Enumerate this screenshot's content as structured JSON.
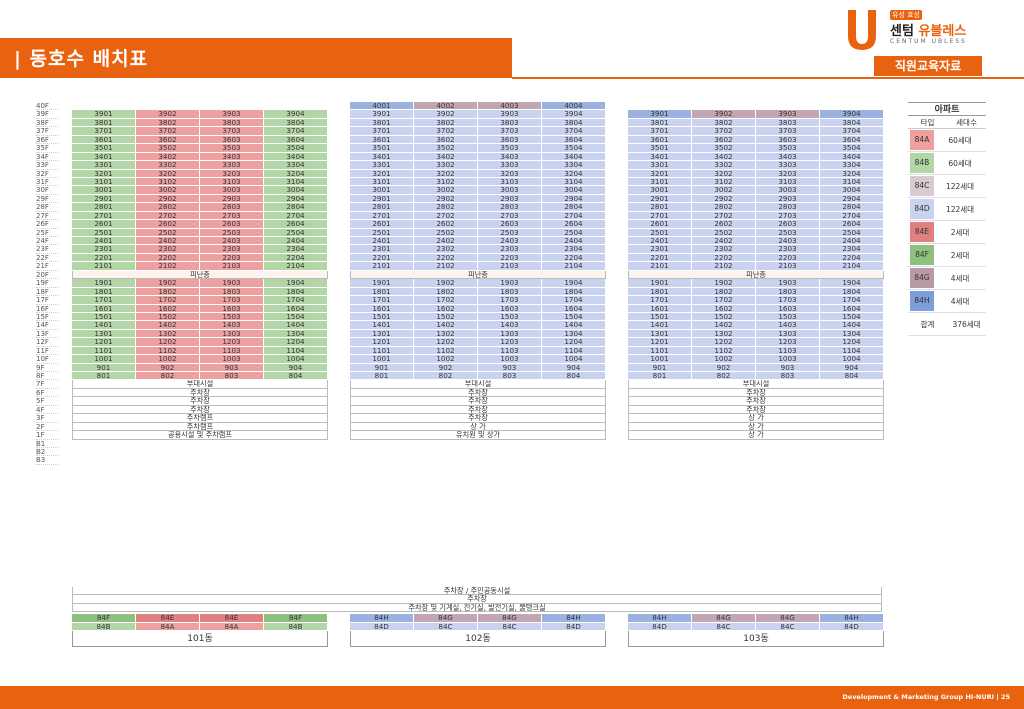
{
  "header": {
    "title": "| 동호수 배치표"
  },
  "logo": {
    "tag": "유성 효성",
    "name_prefix": "센텀",
    "name_accent": "유블레스",
    "sub": "CENTUM UBLESS",
    "badge": "직원교육자료"
  },
  "floors": [
    "40F",
    "39F",
    "38F",
    "37F",
    "36F",
    "35F",
    "34F",
    "33F",
    "32F",
    "31F",
    "30F",
    "29F",
    "28F",
    "27F",
    "26F",
    "25F",
    "24F",
    "23F",
    "22F",
    "21F",
    "20F",
    "19F",
    "18F",
    "17F",
    "16F",
    "15F",
    "14F",
    "13F",
    "12F",
    "11F",
    "10F",
    "9F",
    "8F",
    "7F",
    "6F",
    "5F",
    "4F",
    "3F",
    "2F",
    "1F",
    "B1",
    "B2",
    "B3"
  ],
  "refuge_label": "피난층",
  "buildings": [
    {
      "name": "101동",
      "top_floor": 39,
      "colors": [
        "#b3d6a6",
        "#ee9f9f",
        "#ee9f9f",
        "#b3d6a6"
      ],
      "podium": [
        "부대시설",
        "주차장",
        "주차장",
        "주차장",
        "주차램프",
        "주차램프",
        "공용시설 및 주차램프"
      ],
      "types_top": [
        "84F",
        "84E",
        "84E",
        "84F"
      ],
      "types_bottom": [
        "84B",
        "84A",
        "84A",
        "84B"
      ]
    },
    {
      "name": "102동",
      "top_floor": 40,
      "colors": [
        "#c9d2ee",
        "#c9d2ee",
        "#c9d2ee",
        "#c9d2ee"
      ],
      "top_colors": [
        "#9bb2e0",
        "#c2a6b2",
        "#c2a6b2",
        "#9bb2e0"
      ],
      "podium": [
        "부대시설",
        "주차장",
        "주차장",
        "주차장",
        "주차장",
        "상 가",
        "유치원 및 상가"
      ],
      "types_top": [
        "84H",
        "84G",
        "84G",
        "84H"
      ],
      "types_bottom": [
        "84D",
        "84C",
        "84C",
        "84D"
      ]
    },
    {
      "name": "103동",
      "top_floor": 39,
      "colors": [
        "#c9d2ee",
        "#c9d2ee",
        "#c9d2ee",
        "#c9d2ee"
      ],
      "top_colors": [
        "#9bb2e0",
        "#c2a6b2",
        "#c2a6b2",
        "#9bb2e0"
      ],
      "podium": [
        "부대시설",
        "주차장",
        "주차장",
        "주차장",
        "상 가",
        "상 가",
        "상 가"
      ],
      "types_top": [
        "84H",
        "84G",
        "84G",
        "84H"
      ],
      "types_bottom": [
        "84D",
        "84C",
        "84C",
        "84D"
      ]
    }
  ],
  "basement": [
    "주차장 / 주민공동시설",
    "주차장",
    "주차장 및 기계실, 전기실, 발전기실, 물탱크실"
  ],
  "legend": {
    "title": "아파트",
    "col_type": "타입",
    "col_count": "세대수",
    "rows": [
      {
        "type": "84A",
        "count": "60세대",
        "color": "#ee9f9f"
      },
      {
        "type": "84B",
        "count": "60세대",
        "color": "#b3d6a6"
      },
      {
        "type": "84C",
        "count": "122세대",
        "color": "#d9c9d0"
      },
      {
        "type": "84D",
        "count": "122세대",
        "color": "#c9d2ee"
      },
      {
        "type": "84E",
        "count": "2세대",
        "color": "#e08080"
      },
      {
        "type": "84F",
        "count": "2세대",
        "color": "#8ec07e"
      },
      {
        "type": "84G",
        "count": "4세대",
        "color": "#b89aa6"
      },
      {
        "type": "84H",
        "count": "4세대",
        "color": "#7d9ed8"
      }
    ],
    "total_label": "합계",
    "total_count": "376세대"
  },
  "footer": "Development & Marketing Group HI-NURI  |  25"
}
